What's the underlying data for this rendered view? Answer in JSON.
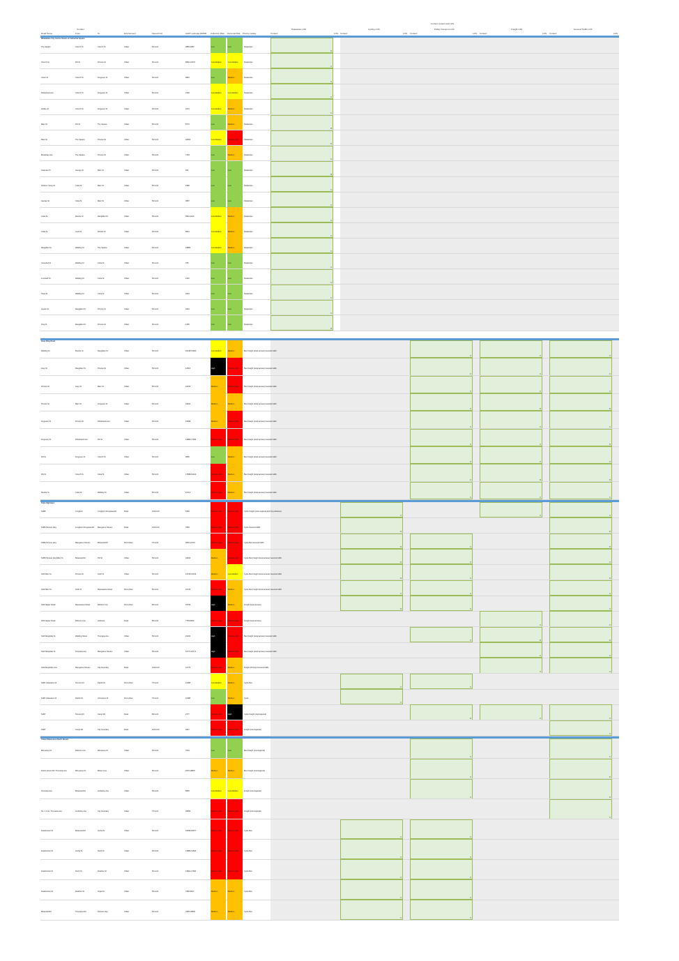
{
  "title": "Current context and LOS",
  "headers": {
    "corridor": "Corridor",
    "road_name": "Road Name",
    "from": "From",
    "to": "To",
    "environment": "Environment",
    "speed_limit": "Speed limit",
    "aadt": "AADT estimate RAMM",
    "collective_risk": "Collective Risk",
    "personal_risk": "Personal Risk",
    "priority_modes": "Priority modes",
    "pedestrian_los": "Pedestrian LOS",
    "cycling_los": "Cycling LOS",
    "pt_los": "Public Transport LOS",
    "freight_los": "Freight LOS",
    "general_los": "General Traffic LOS",
    "context": "Context",
    "los": "LOS"
  },
  "colors": {
    "low": "#92d050",
    "low_medium": "#ffff00",
    "medium": "#ffc000",
    "medium_high": "#ff0000",
    "high": "#000000",
    "band": "#5b9bd5",
    "los_fill": "#e2efda"
  },
  "groups": [
    {
      "name": "Whakatāne City Centre Streets & Cathedral Square",
      "rows": [
        {
          "road": "The Square",
          "from": "Church St",
          "to": "Church St",
          "env": "Urban",
          "speed": "50 km/h",
          "aadt": "4859-9083",
          "coll": "Low",
          "pers": "Low",
          "modes": "Pedestrian",
          "ped_los": "D"
        },
        {
          "road": "Church St",
          "from": "Pitt St",
          "to": "Princes St",
          "env": "Urban",
          "speed": "50 km/h",
          "aadt": "8652-13373",
          "coll": "Low Medium",
          "pers": "Low Medium",
          "modes": "Pedestrian",
          "ped_los": "C"
        },
        {
          "road": "Union St",
          "from": "Church St",
          "to": "Ferguson St",
          "env": "Urban",
          "speed": "50 km/h",
          "aadt": "3840",
          "coll": "Low",
          "pers": "Medium",
          "modes": "Pedestrian",
          "ped_los": "C"
        },
        {
          "road": "Pickerbeck Ave",
          "from": "Church St",
          "to": "Ferguson St",
          "env": "Urban",
          "speed": "50 km/h",
          "aadt": "3726",
          "coll": "Low Medium",
          "pers": "Low Medium",
          "modes": "Pedestrian",
          "ped_los": "C"
        },
        {
          "road": "Ashley St",
          "from": "Church St",
          "to": "Ferguson St",
          "env": "Urban",
          "speed": "50 km/h",
          "aadt": "4474",
          "coll": "Low Medium",
          "pers": "Medium",
          "modes": "Pedestrian",
          "ped_los": "C"
        },
        {
          "road": "Main St",
          "from": "Pitt St",
          "to": "The Square",
          "env": "Urban",
          "speed": "50 km/h",
          "aadt": "5776",
          "coll": "Low",
          "pers": "Medium",
          "modes": "Pedestrian",
          "ped_los": "B"
        },
        {
          "road": "Main St",
          "from": "The Square",
          "to": "Princes St",
          "env": "Urban",
          "speed": "50 km/h",
          "aadt": "18000",
          "coll": "Low Medium",
          "pers": "Medium High",
          "modes": "Pedestrian",
          "ped_los": "D"
        },
        {
          "road": "Broadway Ave",
          "from": "The Square",
          "to": "Princes St",
          "env": "Urban",
          "speed": "50 km/h",
          "aadt": "7163",
          "coll": "Low",
          "pers": "Medium",
          "modes": "Pedestrian",
          "ped_los": "C"
        },
        {
          "road": "Coleman Pl",
          "from": "George St",
          "to": "Main St",
          "env": "Urban",
          "speed": "50 km/h",
          "aadt": "524",
          "coll": "Low",
          "pers": "Low",
          "modes": "Pedestrian",
          "ped_los": "B"
        },
        {
          "road": "Andrew Young St",
          "from": "Coba St",
          "to": "Main St",
          "env": "Urban",
          "speed": "50 km/h",
          "aadt": "1580",
          "coll": "Low",
          "pers": "Low",
          "modes": "Pedestrian",
          "ped_los": "C"
        },
        {
          "road": "George St",
          "from": "Coba St",
          "to": "Main St",
          "env": "Urban",
          "speed": "50 km/h",
          "aadt": "3557",
          "coll": "Low",
          "pers": "Low",
          "modes": "Pedestrian",
          "ped_los": "C"
        },
        {
          "road": "Coba St",
          "from": "Rourke St",
          "to": "Rangitikei St",
          "env": "Urban",
          "speed": "50 km/h",
          "aadt": "5561-2213",
          "coll": "Low Medium",
          "pers": "Medium",
          "modes": "Pedestrian",
          "ped_los": "C"
        },
        {
          "road": "Coba St",
          "from": "Cook St",
          "to": "Rourke St",
          "env": "Urban",
          "speed": "50 km/h",
          "aadt": "8042",
          "coll": "Low Medium",
          "pers": "Medium",
          "modes": "Pedestrian",
          "ped_los": "C"
        },
        {
          "road": "Rangitikei St",
          "from": "Walding St",
          "to": "The Square",
          "env": "Urban",
          "speed": "50 km/h",
          "aadt": "19880",
          "coll": "Low Medium",
          "pers": "Medium",
          "modes": "Pedestrian",
          "ped_los": "C"
        },
        {
          "road": "Campbell St",
          "from": "Walding St",
          "to": "Coba St",
          "env": "Urban",
          "speed": "50 km/h",
          "aadt": "705",
          "coll": "Low",
          "pers": "Low",
          "modes": "Pedestrian",
          "ped_los": "C"
        },
        {
          "road": "Lombard St",
          "from": "Walding St",
          "to": "Coba St",
          "env": "Urban",
          "speed": "50 km/h",
          "aadt": "2110",
          "coll": "Low",
          "pers": "Low",
          "modes": "Pedestrian",
          "ped_los": "C"
        },
        {
          "road": "Tawa St",
          "from": "Walding St",
          "to": "Coba St",
          "env": "Urban",
          "speed": "50 km/h",
          "aadt": "1643",
          "coll": "Low",
          "pers": "Low",
          "modes": "Pedestrian",
          "ped_los": "C"
        },
        {
          "road": "Queen St",
          "from": "Rangitikei St",
          "to": "Princes St",
          "env": "Urban",
          "speed": "50 km/h",
          "aadt": "3261",
          "coll": "Low",
          "pers": "Low",
          "modes": "Pedestrian",
          "ped_los": "C"
        },
        {
          "road": "King St",
          "from": "Rangitikei St",
          "to": "Princes St",
          "env": "Urban",
          "speed": "50 km/h",
          "aadt": "1355",
          "coll": "Low",
          "pers": "Low",
          "modes": "Pedestrian",
          "ped_los": "B"
        }
      ]
    },
    {
      "name": "Inner Ring Road",
      "rows": [
        {
          "road": "Walding St",
          "from": "Rourke St",
          "to": "Rangitikei St",
          "env": "Urban",
          "speed": "50 km/h",
          "aadt": "10218-13003",
          "coll": "Low Medium",
          "pers": "Medium",
          "modes": "Bus Freight (local access) General traffic",
          "pt_los": "C",
          "freight_los": "C",
          "gen_los": "C"
        },
        {
          "road": "Grey St",
          "from": "Rangitikei St",
          "to": "Princes St",
          "env": "Urban",
          "speed": "50 km/h",
          "aadt": "11516",
          "coll": "High",
          "pers": "Medium High",
          "modes": "Bus Freight (local access) General traffic",
          "pt_los": "C",
          "freight_los": "C",
          "gen_los": "C"
        },
        {
          "road": "Princes St",
          "from": "Grey St",
          "to": "Main St",
          "env": "Urban",
          "speed": "50 km/h",
          "aadt": "12125",
          "coll": "Medium",
          "pers": "Medium High",
          "modes": "Bus Freight (local access) General traffic",
          "pt_los": "C",
          "freight_los": "C",
          "gen_los": "C"
        },
        {
          "road": "Princes St",
          "from": "Main St",
          "to": "Ferguson St",
          "env": "Urban",
          "speed": "50 km/h",
          "aadt": "19941",
          "coll": "Medium",
          "pers": "Medium",
          "modes": "Bus Freight (local access) General traffic",
          "pt_los": "C",
          "freight_los": "D",
          "gen_los": "D"
        },
        {
          "road": "Ferguson St",
          "from": "Princes St",
          "to": "Pickerbeck Ave",
          "env": "Urban",
          "speed": "50 km/h",
          "aadt": "15668",
          "coll": "Medium",
          "pers": "Medium High",
          "modes": "Bus Freight (local access) General traffic",
          "pt_los": "C",
          "freight_los": "C",
          "gen_los": "C"
        },
        {
          "road": "Ferguson St",
          "from": "Pickerbeck Ave",
          "to": "Pitt St",
          "env": "Urban",
          "speed": "50 km/h",
          "aadt": "12880-17954",
          "coll": "Medium High",
          "pers": "Medium High",
          "modes": "Bus Freight (local access) General traffic",
          "pt_los": "C",
          "freight_los": "C",
          "gen_los": "D"
        },
        {
          "road": "Pitt St",
          "from": "Ferguson St",
          "to": "Church St",
          "env": "Urban",
          "speed": "50 km/h",
          "aadt": "9656",
          "coll": "Low",
          "pers": "Medium",
          "modes": "Bus Freight (local access) General traffic",
          "pt_los": "C",
          "freight_los": "C",
          "gen_los": "C"
        },
        {
          "road": "Pitt St",
          "from": "Church St",
          "to": "Coba St",
          "env": "Urban",
          "speed": "50 km/h",
          "aadt": "17898-16104",
          "coll": "Medium High",
          "pers": "Medium",
          "modes": "Bus Freight (local access) General traffic",
          "pt_los": "C",
          "freight_los": "D",
          "gen_los": "D"
        },
        {
          "road": "Rourke St",
          "from": "Coba St",
          "to": "Walding St",
          "env": "Urban",
          "speed": "50 km/h",
          "aadt": "11713",
          "coll": "Medium High",
          "pers": "Medium",
          "modes": "Bus Freight (local access) General traffic",
          "pt_los": "C",
          "freight_los": "C",
          "gen_los": "C"
        }
      ]
    },
    {
      "name": "State Highways",
      "rows": [
        {
          "road": "SH56",
          "from": "Longburn",
          "to": "Longburn Rongotea Rd",
          "env": "Rural",
          "speed": "100 km/h",
          "aadt": "6162",
          "coll": "Medium High",
          "pers": "Medium High",
          "modes": "Cycle Freight (inter-regional and long distance)",
          "cyc_los": "C",
          "freight_los": "C",
          "gen_los": "C"
        },
        {
          "road": "SH56 Pioneer Hwy",
          "from": "Longburn Rongotea Rd",
          "to": "Mangaone Stream",
          "env": "Rural",
          "speed": "100 km/h",
          "aadt": "7660",
          "coll": "Medium High",
          "pers": "Medium High",
          "modes": "Cycle General traffic",
          "cyc_los": "D",
          "gen_los": "D"
        },
        {
          "road": "SH56 Pioneer Hwy",
          "from": "Mangaone Stream",
          "to": "Botanical Rd",
          "env": "Peri-Urban",
          "speed": "70 km/h",
          "aadt": "9040-12721",
          "coll": "Medium High",
          "pers": "Medium High",
          "modes": "Cycle Bus General traffic",
          "cyc_los": "D",
          "pt_los": "C",
          "gen_los": "D"
        },
        {
          "road": "SH56 Pioneer Hwy/Main St",
          "from": "Botanical Rd",
          "to": "Pitt St",
          "env": "Urban",
          "speed": "50 km/h",
          "aadt": "16400",
          "coll": "Medium",
          "pers": "Medium High",
          "modes": "Cycle Bus Freight (local access) General traffic",
          "cyc_los": "D",
          "pt_los": "C",
          "gen_los": "C"
        },
        {
          "road": "SH3 Main St",
          "from": "Princes St",
          "to": "Keith St",
          "env": "Urban",
          "speed": "50 km/h",
          "aadt": "14746-16134",
          "coll": "Medium",
          "pers": "Low Medium",
          "modes": "Cycle Bus Freight (local access) General traffic",
          "cyc_los": "D",
          "pt_los": "C",
          "gen_los": "D"
        },
        {
          "road": "SH3 Main St",
          "from": "Keith St",
          "to": "Manawaroa Street",
          "env": "Peri-Urban",
          "speed": "50 km/h",
          "aadt": "10744",
          "coll": "Medium High",
          "pers": "Medium",
          "modes": "Cycle Bus Freight (local access) General traffic",
          "cyc_los": "C",
          "pt_los": "C",
          "gen_los": "C"
        },
        {
          "road": "SH3 Napier Road",
          "from": "Manawaroa Street",
          "to": "Roberts Line",
          "env": "Peri-Urban",
          "speed": "80 km/h",
          "aadt": "10752",
          "coll": "High",
          "pers": "Medium",
          "modes": "Freight (local access)",
          "cyc_los": "D",
          "pt_los": "C",
          "gen_los": "C"
        },
        {
          "road": "SH3 Napier Road",
          "from": "Roberts Line",
          "to": "Ashhurst",
          "env": "Rural",
          "speed": "80 km/h",
          "aadt": "7753-9816",
          "coll": "Medium High",
          "pers": "Medium High",
          "modes": "Freight (local access)",
          "freight_los": "C",
          "gen_los": "C"
        },
        {
          "road": "SH3 Rangitikei St",
          "from": "Walding Street",
          "to": "Tremaine Ave",
          "env": "Urban",
          "speed": "50 km/h",
          "aadt": "21130",
          "coll": "High",
          "pers": "Medium High",
          "modes": "Bus Freight (local access) General traffic",
          "pt_los": "C",
          "freight_los": "D",
          "gen_los": "D"
        },
        {
          "road": "SH3 Rangitikei St",
          "from": "Tremaine Ave",
          "to": "Mangaone Stream",
          "env": "Urban",
          "speed": "50 km/h",
          "aadt": "11774-19771",
          "coll": "High",
          "pers": "Medium High",
          "modes": "Bus Freight (local access) General traffic",
          "freight_los": "C",
          "gen_los": "C"
        },
        {
          "road": "SH3 Rangitikei Line",
          "from": "Mangaone Stream",
          "to": "City boundary",
          "env": "Rural",
          "speed": "100 km/h",
          "aadt": "11776",
          "coll": "Medium High",
          "pers": "Medium",
          "modes": "Freight (Priority) General traffic",
          "freight_los": "C",
          "gen_los": "C"
        },
        {
          "road": "SH57 Aokautere Dr",
          "from": "Tennent Dr",
          "to": "Pacific Dr",
          "env": "Peri-Urban",
          "speed": "70 km/h",
          "aadt": "11388",
          "coll": "Low Medium",
          "pers": "Medium",
          "modes": "Cycle Bus",
          "cyc_los": "C",
          "pt_los": "C"
        },
        {
          "road": "SH57 Aokautere Dr",
          "from": "Pacific Dr",
          "to": "Johnstone Dr",
          "env": "Peri-Urban",
          "speed": "70 km/h",
          "aadt": "11388",
          "coll": "Low",
          "pers": "Medium",
          "modes": "Cycle",
          "cyc_los": "C"
        },
        {
          "road": "SH57",
          "from": "Tennent Dr",
          "to": "Camp Rd",
          "env": "Rural",
          "speed": "80 km/h",
          "aadt": "2777",
          "coll": "Medium High",
          "pers": "High",
          "modes": "Cycle Freight (interregional)",
          "pt_los": "D",
          "freight_los": "C",
          "gen_los": "C"
        },
        {
          "road": "SH57",
          "from": "Camp Rd",
          "to": "City boundary",
          "env": "Rural",
          "speed": "100 km/h",
          "aadt": "4647",
          "coll": "Medium High",
          "pers": "Medium High",
          "modes": "Freight (interregional)",
          "gen_los": "C"
        }
      ]
    },
    {
      "name": "Urban Palmerston North Streets",
      "rows": [
        {
          "road": "McLeavey Dr",
          "from": "Roberts Line",
          "to": "McLeavey Dr",
          "env": "Urban",
          "speed": "50 km/h",
          "aadt": "7014",
          "coll": "Low",
          "pers": "Low",
          "modes": "Bus Freight (interregional)",
          "pt_los": "C",
          "gen_los": "C"
        },
        {
          "road": "Kelvin Grove Rd / Tremaine Ave",
          "from": "McLeavey Dr",
          "to": "Milson Line",
          "env": "Urban",
          "speed": "50 km/h",
          "aadt": "9476-18837",
          "coll": "Medium",
          "pers": "Medium",
          "modes": "Bus Freight (interregional)",
          "pt_los": "C",
          "gen_los": "D"
        },
        {
          "road": "Tremaine Ave",
          "from": "Botanical Rd",
          "to": "Amberley Ave",
          "env": "Urban",
          "speed": "50 km/h",
          "aadt": "8655",
          "coll": "Low Medium",
          "pers": "Low Medium",
          "modes": "Freight (interregional)",
          "pt_los": "C",
          "gen_los": "D"
        },
        {
          "road": "No. 1 Line / Tremaine Ave",
          "from": "Amberley Ave",
          "to": "City boundary",
          "env": "Urban",
          "speed": "70 km/h",
          "aadt": "20852",
          "coll": "Medium High",
          "pers": "Medium High",
          "modes": "Freight (interregional)",
          "gen_los": "C"
        },
        {
          "road": "Featherston St",
          "from": "Botanical Rd",
          "to": "Aroha St",
          "env": "Urban",
          "speed": "50 km/h",
          "aadt": "10359-18677",
          "coll": "Medium High",
          "pers": "Medium High",
          "modes": "Cycle Bus",
          "cyc_los": "C",
          "pt_los": "C"
        },
        {
          "road": "Featherston St",
          "from": "Aroha St",
          "to": "North St",
          "env": "Urban",
          "speed": "50 km/h",
          "aadt": "12880-14524",
          "coll": "Medium High",
          "pers": "Medium High",
          "modes": "Cycle Bus",
          "cyc_los": "C",
          "pt_los": "C"
        },
        {
          "road": "Featherston St",
          "from": "North St",
          "to": "Ruahine St",
          "env": "Urban",
          "speed": "50 km/h",
          "aadt": "14821-17691",
          "coll": "Medium High",
          "pers": "Medium High",
          "modes": "Cycle Bus",
          "cyc_los": "C",
          "pt_los": "C"
        },
        {
          "road": "Featherston St",
          "from": "Ruahine St",
          "to": "Vogel St",
          "env": "Urban",
          "speed": "50 km/h",
          "aadt": "7366-9617",
          "coll": "Medium",
          "pers": "Medium",
          "modes": "Cycle Bus",
          "cyc_los": "C",
          "pt_los": "C"
        },
        {
          "road": "Botanical Rd",
          "from": "Tremaine Ave",
          "to": "Pioneer Hwy",
          "env": "Urban",
          "speed": "50 km/h",
          "aadt": "7995-10804",
          "coll": "Medium",
          "pers": "Medium",
          "modes": "Cycle Bus",
          "cyc_los": "C",
          "pt_los": "C"
        }
      ]
    }
  ]
}
